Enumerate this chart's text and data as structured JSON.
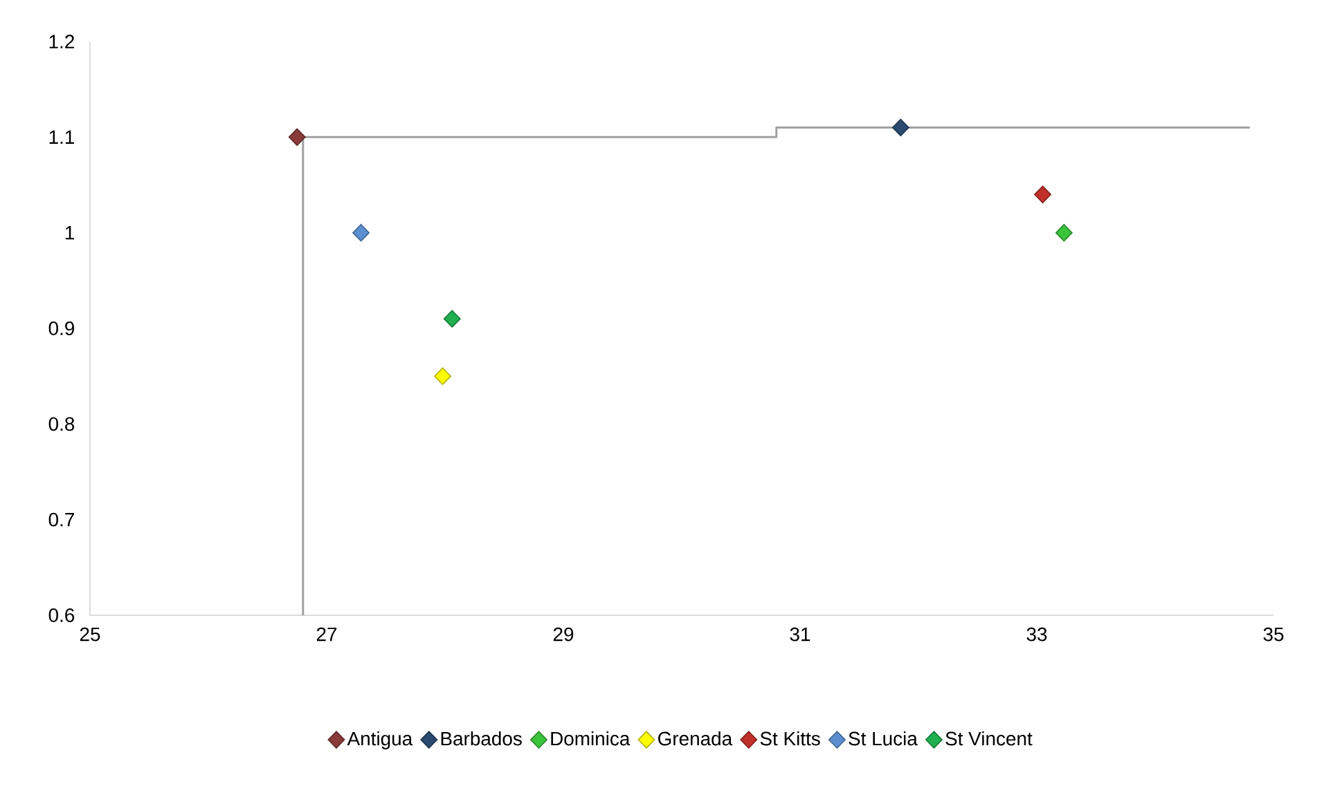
{
  "chart_data": {
    "type": "scatter",
    "legend": "bottom",
    "grid": false,
    "xlim": [
      25,
      35
    ],
    "xticks": [
      25,
      27,
      29,
      31,
      33,
      35
    ],
    "ylim": [
      0.6,
      1.2
    ],
    "yticks": [
      0.6,
      0.7,
      0.8,
      0.9,
      1,
      1.1,
      1.2
    ],
    "series": [
      {
        "name": "Antigua",
        "color": "#8b3a3a",
        "marker": "diamond",
        "x": [
          26.75
        ],
        "values": [
          1.1
        ]
      },
      {
        "name": "Barbados",
        "color": "#2a4a70",
        "marker": "diamond",
        "x": [
          31.85
        ],
        "values": [
          1.11
        ]
      },
      {
        "name": "Dominica",
        "color": "#3cc33c",
        "marker": "diamond",
        "x": [
          33.23
        ],
        "values": [
          1.0
        ]
      },
      {
        "name": "Grenada",
        "color": "#ffff00",
        "marker": "diamond",
        "x": [
          27.98
        ],
        "values": [
          0.85
        ]
      },
      {
        "name": "St Kitts",
        "color": "#c0302a",
        "marker": "diamond",
        "x": [
          33.05
        ],
        "values": [
          1.04
        ]
      },
      {
        "name": "St Lucia",
        "color": "#5b8fd0",
        "marker": "diamond",
        "x": [
          27.29
        ],
        "values": [
          1.0
        ]
      },
      {
        "name": "St Vincent",
        "color": "#20b050",
        "marker": "diamond",
        "x": [
          28.06
        ],
        "values": [
          0.91
        ]
      },
      {
        "type": "line",
        "color": "#a0a0a0",
        "marker": "none",
        "x": [
          26.8,
          26.8,
          30.8,
          30.8,
          34.8
        ],
        "values": [
          0.6,
          1.1,
          1.1,
          1.11,
          1.11
        ]
      }
    ]
  }
}
